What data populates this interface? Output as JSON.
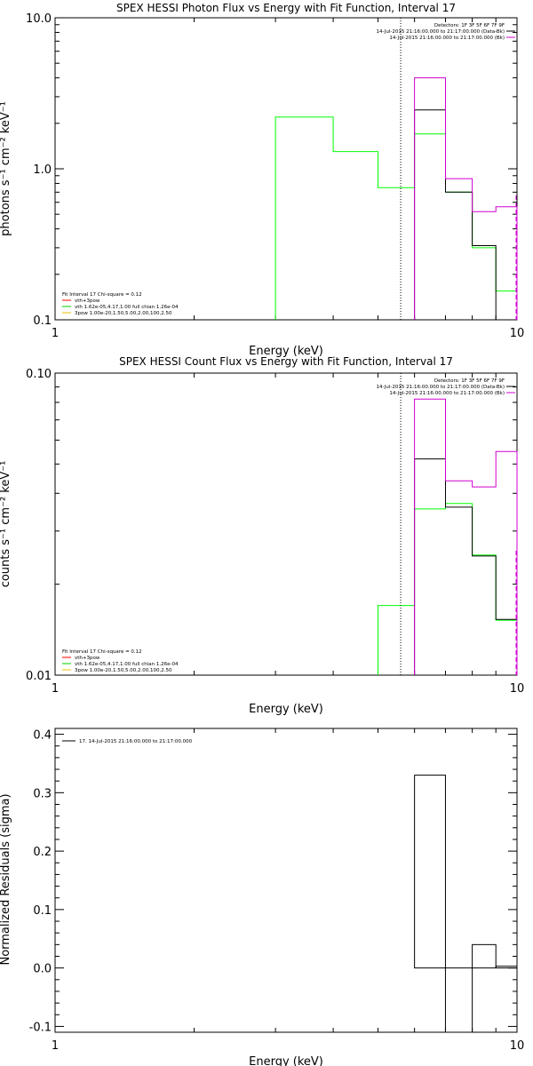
{
  "chart_data": [
    {
      "type": "line",
      "title": "SPEX HESSI Photon Flux vs Energy with Fit Function, Interval 17",
      "xlabel": "Energy (keV)",
      "ylabel": "photons s⁻¹ cm⁻² keV⁻¹",
      "xscale": "log",
      "yscale": "log",
      "xlim": [
        1,
        10
      ],
      "ylim": [
        0.1,
        10
      ],
      "xticks": [
        "1",
        "10"
      ],
      "yticks": [
        "0.1",
        "1.0",
        "10.0"
      ],
      "vline_x": 5.6,
      "legend_top": [
        {
          "text": "Detectors: 1F 3F 5F 6F 7F 9F",
          "color": "#000000"
        },
        {
          "text": "14-Jul-2015 21:16:00.000 to 21:17:00.000 (Data-Bk)",
          "color": "#000000"
        },
        {
          "text": "14-Jul-2015 21:16:00.000 to 21:17:00.000 (Bk)",
          "color": "#d000d0"
        }
      ],
      "legend_bottom": [
        {
          "text": "Fit Interval 17   Chi-square = 0.12",
          "color": "#000000"
        },
        {
          "text": "vth+3pow",
          "color": "#ff0000"
        },
        {
          "text": "vth 1.62e-05,4.17,1.00  full chian 1.26e-04",
          "color": "#00cc00"
        },
        {
          "text": "3pow 1.00e-20,1.50,5.00,2.00,100,2.50",
          "color": "#e8c000"
        }
      ],
      "series": [
        {
          "color": "#00ff00",
          "edges": [
            3,
            4,
            5,
            6,
            7,
            8,
            9,
            10
          ],
          "values": [
            2.2,
            1.3,
            0.75,
            1.7,
            0.7,
            0.3,
            0.155
          ]
        },
        {
          "color": "#000000",
          "edges": [
            6,
            7,
            8,
            9,
            10
          ],
          "values": [
            2.45,
            0.7,
            0.31,
            0.1
          ]
        },
        {
          "color": "#d000d0",
          "edges": [
            6,
            7,
            8,
            9,
            10
          ],
          "values": [
            4.0,
            0.86,
            0.52,
            0.56
          ]
        }
      ]
    },
    {
      "type": "line",
      "title": "SPEX HESSI Count Flux vs Energy with Fit Function, Interval 17",
      "xlabel": "Energy (keV)",
      "ylabel": "counts s⁻¹ cm⁻² keV⁻¹",
      "xscale": "log",
      "yscale": "log",
      "xlim": [
        1,
        10
      ],
      "ylim": [
        0.01,
        0.1
      ],
      "xticks": [
        "1",
        "10"
      ],
      "yticks": [
        "0.01",
        "0.10"
      ],
      "vline_x": 5.6,
      "legend_top": [
        {
          "text": "Detectors: 1F 3F 5F 6F 7F 9F",
          "color": "#000000"
        },
        {
          "text": "14-Jul-2015 21:16:00.000 to 21:17:00.000 (Data-Bk)",
          "color": "#000000"
        },
        {
          "text": "14-Jul-2015 21:16:00.000 to 21:17:00.000 (Bk)",
          "color": "#d000d0"
        }
      ],
      "legend_bottom": [
        {
          "text": "Fit Interval 17   Chi-square = 0.12",
          "color": "#000000"
        },
        {
          "text": "vth+3pow",
          "color": "#ff0000"
        },
        {
          "text": "vth 1.62e-05,4.17,1.00  full chian 1.26e-04",
          "color": "#00cc00"
        },
        {
          "text": "3pow 1.00e-20,1.50,5.00,2.00,100,2.50",
          "color": "#e8c000"
        }
      ],
      "series": [
        {
          "color": "#00ff00",
          "edges": [
            5,
            6,
            7,
            8,
            9,
            10
          ],
          "values": [
            0.017,
            0.0355,
            0.037,
            0.025,
            0.0152
          ]
        },
        {
          "color": "#000000",
          "edges": [
            6,
            7,
            8,
            9,
            10
          ],
          "values": [
            0.052,
            0.036,
            0.0248,
            0.0153
          ]
        },
        {
          "color": "#d000d0",
          "edges": [
            6,
            7,
            8,
            9,
            10
          ],
          "values": [
            0.082,
            0.044,
            0.042,
            0.055
          ]
        }
      ]
    },
    {
      "type": "bar",
      "title": "",
      "xlabel": "Energy (keV)",
      "ylabel": "Normalized Residuals (sigma)",
      "xscale": "log",
      "yscale": "linear",
      "xlim": [
        1,
        10
      ],
      "ylim": [
        -0.11,
        0.41
      ],
      "xticks": [
        "1",
        "10"
      ],
      "yticks": [
        "-0.1",
        "0.0",
        "0.1",
        "0.2",
        "0.3",
        "0.4"
      ],
      "legend": [
        {
          "text": "17. 14-Jul-2015 21:16:00.000 to 21:17:00.000",
          "color": "#000000"
        }
      ],
      "edges": [
        6,
        7,
        8,
        9,
        10
      ],
      "values": [
        0.33,
        -0.11,
        0.04,
        0.003
      ]
    }
  ]
}
